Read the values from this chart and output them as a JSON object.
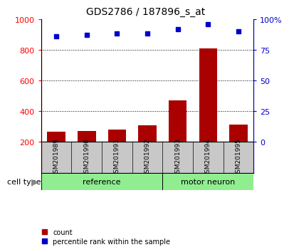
{
  "title": "GDS2786 / 187896_s_at",
  "samples": [
    "GSM201989",
    "GSM201990",
    "GSM201991",
    "GSM201992",
    "GSM201993",
    "GSM201994",
    "GSM201995"
  ],
  "counts": [
    265,
    272,
    280,
    310,
    470,
    808,
    315
  ],
  "percentiles": [
    86,
    87,
    88,
    88,
    92,
    96,
    90
  ],
  "groups": [
    "reference",
    "reference",
    "reference",
    "reference",
    "motor neuron",
    "motor neuron",
    "motor neuron"
  ],
  "bar_color": "#AA0000",
  "dot_color": "#0000CC",
  "ylim_left": [
    200,
    1000
  ],
  "ylim_right": [
    0,
    100
  ],
  "yticks_left": [
    200,
    400,
    600,
    800,
    1000
  ],
  "yticks_right": [
    0,
    25,
    50,
    75,
    100
  ],
  "grid_values": [
    400,
    600,
    800
  ],
  "col_bg_color": "#C8C8C8",
  "group_green": "#90EE90",
  "legend_count_label": "count",
  "legend_percentile_label": "percentile rank within the sample",
  "cell_type_label": "cell type"
}
